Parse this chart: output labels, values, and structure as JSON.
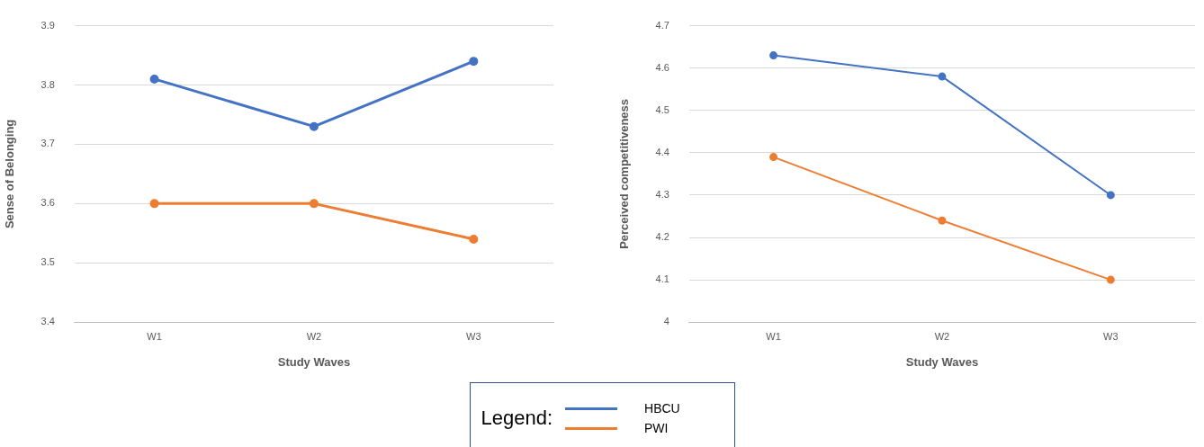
{
  "chart_data": [
    {
      "type": "line",
      "categories": [
        "W1",
        "W2",
        "W3"
      ],
      "xlabel": "Study Waves",
      "ylabel": "Sense of Belonging",
      "ylim": [
        3.4,
        3.9
      ],
      "yticks": [
        3.4,
        3.5,
        3.6,
        3.7,
        3.8,
        3.9
      ],
      "grid": "y",
      "marker": "circle",
      "line_style": "solid",
      "legend": "bottom",
      "legend_title": "Legend:",
      "series": [
        {
          "name": "HBCU",
          "color": "#4472c4",
          "values": [
            3.81,
            3.73,
            3.84
          ]
        },
        {
          "name": "PWI",
          "color": "#ed7d31",
          "values": [
            3.6,
            3.6,
            3.54
          ]
        }
      ]
    },
    {
      "type": "line",
      "categories": [
        "W1",
        "W2",
        "W3"
      ],
      "xlabel": "Study Waves",
      "ylabel": "Perceived competitiveness",
      "ylim": [
        4,
        4.7
      ],
      "yticks": [
        4,
        4.1,
        4.2,
        4.3,
        4.4,
        4.5,
        4.6,
        4.7
      ],
      "grid": "y",
      "marker": "circle",
      "line_style": "solid",
      "series": [
        {
          "color": "#4472c4",
          "values": [
            4.63,
            4.58,
            4.3
          ]
        },
        {
          "color": "#ed7d31",
          "values": [
            4.39,
            4.24,
            4.1
          ]
        }
      ]
    }
  ]
}
